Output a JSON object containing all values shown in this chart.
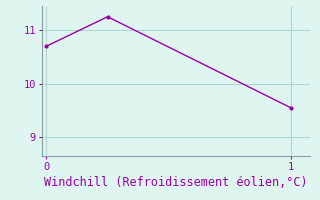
{
  "x": [
    0,
    0.25,
    1.0
  ],
  "y": [
    10.7,
    11.25,
    9.55
  ],
  "line_color": "#9900aa",
  "marker_color": "#9900aa",
  "bg_color": "#dff5f0",
  "grid_color": "#aad8d0",
  "spine_color": "#8899aa",
  "tick_color": "#9900aa",
  "label_color": "#9900aa",
  "xlabel": "Windchill (Refroidissement éolien,°C)",
  "xlabel_fontsize": 8.5,
  "yticks": [
    9,
    10,
    11
  ],
  "xticks": [
    0,
    1
  ],
  "xlim": [
    -0.02,
    1.08
  ],
  "ylim": [
    8.65,
    11.45
  ]
}
